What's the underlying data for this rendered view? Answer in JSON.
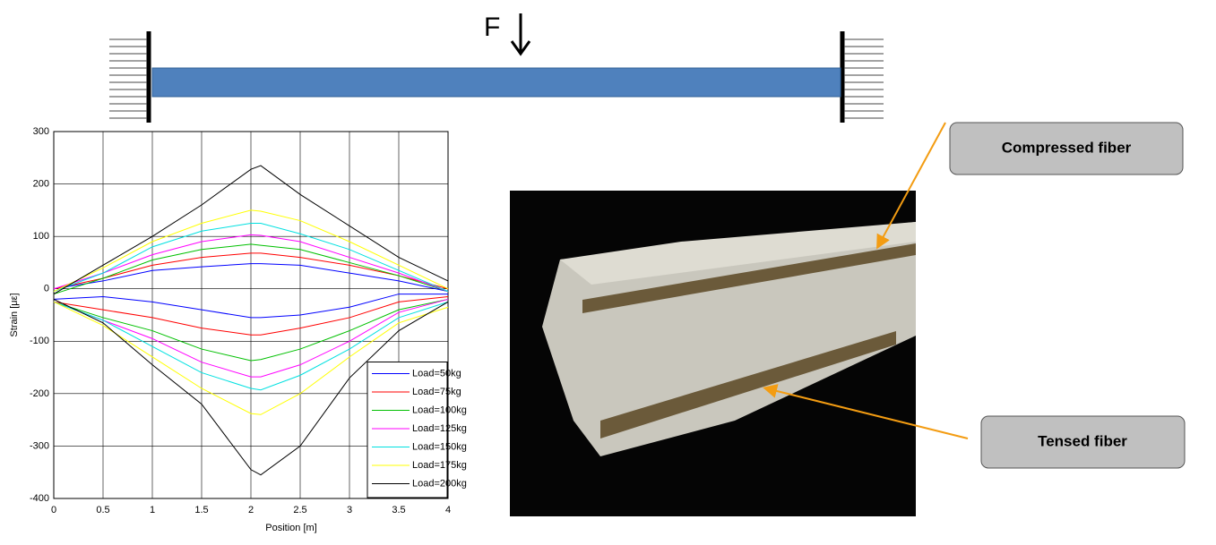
{
  "diagram": {
    "force_label": "F"
  },
  "callouts": [
    "Compressed fiber",
    "Tensed fiber"
  ],
  "chart_data": {
    "type": "line",
    "xlabel": "Position  [m]",
    "ylabel": "Strain  [με]",
    "x": [
      0,
      0.5,
      1,
      1.5,
      2,
      2.1,
      2.5,
      3,
      3.5,
      4
    ],
    "xlim": [
      0,
      4
    ],
    "xticks": [
      0,
      0.5,
      1,
      1.5,
      2,
      2.5,
      3,
      3.5,
      4
    ],
    "ylim": [
      -400,
      300
    ],
    "yticks": [
      -400,
      -300,
      -200,
      -100,
      0,
      100,
      200,
      300
    ],
    "grid": true,
    "legend": "lower right",
    "series": [
      {
        "name": "Load=50kg",
        "color": "#0000ff",
        "values": [
          0,
          15,
          35,
          42,
          48,
          48,
          45,
          30,
          15,
          -5
        ],
        "lower_values": [
          -20,
          -15,
          -25,
          -40,
          -55,
          -55,
          -50,
          -35,
          -10,
          -10
        ]
      },
      {
        "name": "Load=75kg",
        "color": "#ff0000",
        "values": [
          0,
          20,
          45,
          60,
          68,
          68,
          60,
          45,
          25,
          0
        ],
        "lower_values": [
          -25,
          -40,
          -55,
          -75,
          -88,
          -88,
          -75,
          -55,
          -25,
          -15
        ]
      },
      {
        "name": "Load=100kg",
        "color": "#00c000",
        "values": [
          -10,
          20,
          55,
          75,
          85,
          83,
          75,
          50,
          25,
          -5
        ],
        "lower_values": [
          -25,
          -55,
          -80,
          -115,
          -137,
          -135,
          -115,
          -80,
          -40,
          -20
        ]
      },
      {
        "name": "Load=125kg",
        "color": "#ff00ff",
        "values": [
          0,
          30,
          65,
          90,
          103,
          102,
          90,
          60,
          30,
          -5
        ],
        "lower_values": [
          -25,
          -60,
          -95,
          -140,
          -168,
          -168,
          -145,
          -100,
          -45,
          -20
        ]
      },
      {
        "name": "Load=150kg",
        "color": "#00e0e0",
        "values": [
          -5,
          30,
          80,
          110,
          125,
          125,
          105,
          75,
          35,
          -5
        ],
        "lower_values": [
          -25,
          -60,
          -110,
          -160,
          -190,
          -193,
          -165,
          -115,
          -55,
          -25
        ]
      },
      {
        "name": "Load=175kg",
        "color": "#ffff00",
        "values": [
          -5,
          40,
          90,
          125,
          150,
          148,
          130,
          90,
          45,
          0
        ],
        "lower_values": [
          -25,
          -70,
          -130,
          -190,
          -238,
          -240,
          -200,
          -130,
          -65,
          -35
        ]
      },
      {
        "name": "Load=200kg",
        "color": "#000000",
        "values": [
          -10,
          45,
          100,
          160,
          228,
          235,
          180,
          120,
          60,
          15
        ],
        "lower_values": [
          -20,
          -65,
          -145,
          -220,
          -345,
          -355,
          -300,
          -170,
          -80,
          -25
        ]
      }
    ]
  }
}
